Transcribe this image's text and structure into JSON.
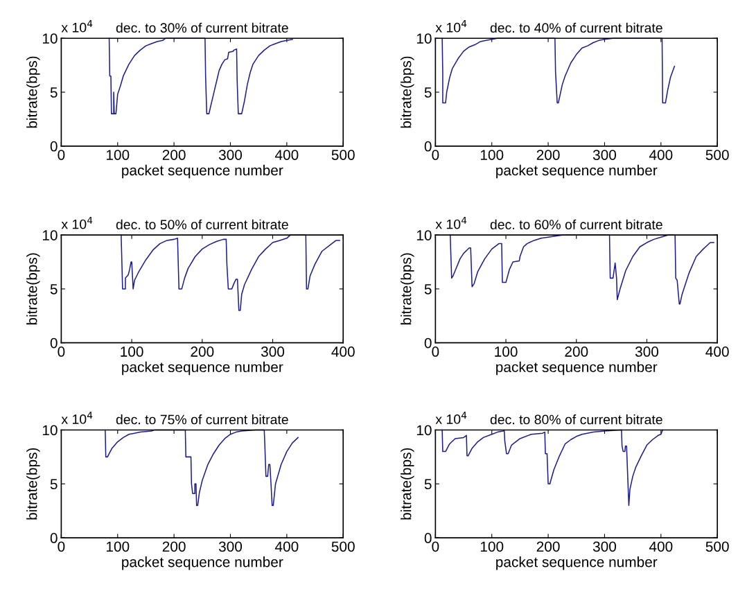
{
  "chart_data": [
    {
      "type": "line",
      "title": "dec. to 30% of current bitrate",
      "xlabel": "packet sequence number",
      "ylabel": "bitrate(bps)",
      "annotations": [
        "x 10$^{4}$"
      ],
      "xlim": [
        0,
        500
      ],
      "xticks": [
        0,
        100,
        200,
        300,
        400,
        500
      ],
      "ylim": [
        0,
        10
      ],
      "yticks": [
        0,
        5,
        10
      ],
      "grid": false,
      "legend": false,
      "series": [
        {
          "color": "#1c1c8a",
          "x": [
            85,
            86,
            88,
            89,
            93,
            93,
            94,
            97,
            100,
            105,
            110,
            120,
            130,
            140,
            150,
            160,
            170,
            180,
            185,
            255,
            256,
            258,
            262,
            265,
            270,
            275,
            280,
            285,
            290,
            295,
            297,
            305,
            306,
            311,
            312,
            314,
            320,
            325,
            330,
            335,
            340,
            350,
            360,
            370,
            380,
            390,
            400,
            410
          ],
          "values": [
            10,
            6.5,
            6.5,
            3,
            3,
            5,
            3,
            3,
            4.8,
            5.6,
            6.5,
            7.6,
            8.4,
            8.9,
            9.3,
            9.5,
            9.7,
            9.8,
            10,
            10,
            6.5,
            3,
            3,
            3.7,
            4.8,
            5.9,
            7,
            7.6,
            8,
            8.1,
            8.7,
            8.8,
            8.9,
            9,
            6,
            3,
            3,
            4.2,
            5.7,
            6.8,
            7.6,
            8.4,
            8.9,
            9.3,
            9.5,
            9.7,
            9.8,
            9.9
          ]
        }
      ]
    },
    {
      "type": "line",
      "title": "dec. to 40% of current bitrate",
      "xlabel": "packet sequence number",
      "ylabel": "bitrate(bps)",
      "annotations": [
        "x 10$^{4}$"
      ],
      "xlim": [
        0,
        500
      ],
      "xticks": [
        0,
        100,
        200,
        300,
        400,
        500
      ],
      "ylim": [
        0,
        10
      ],
      "yticks": [
        0,
        5,
        10
      ],
      "grid": false,
      "legend": false,
      "series": [
        {
          "color": "#1c1c8a",
          "x": [
            12,
            13,
            13,
            18,
            20,
            25,
            30,
            40,
            50,
            60,
            70,
            80,
            90,
            100,
            110,
            212,
            213,
            216,
            218,
            225,
            230,
            240,
            250,
            260,
            270,
            280,
            290,
            300,
            315,
            402,
            403,
            408,
            412,
            417,
            424
          ],
          "values": [
            10,
            6.8,
            4,
            4,
            5,
            6.3,
            7.2,
            8.1,
            8.8,
            9.2,
            9.4,
            9.7,
            9.8,
            9.9,
            10,
            10,
            6.9,
            4,
            4,
            5.7,
            6.5,
            7.7,
            8.5,
            9.1,
            9.3,
            9.6,
            9.8,
            9.9,
            10,
            10,
            4,
            4,
            5.2,
            6.4,
            7.4
          ]
        }
      ]
    },
    {
      "type": "line",
      "title": "dec. to 50% of current bitrate",
      "xlabel": "packet sequence number",
      "ylabel": "bitrate(bps)",
      "annotations": [
        "x 10$^{4}$"
      ],
      "xlim": [
        0,
        400
      ],
      "xticks": [
        0,
        100,
        200,
        300,
        400
      ],
      "ylim": [
        0,
        10
      ],
      "yticks": [
        0,
        5,
        10
      ],
      "grid": false,
      "legend": false,
      "series": [
        {
          "color": "#1c1c8a",
          "x": [
            85,
            86,
            87,
            91,
            91,
            95,
            97,
            99,
            100,
            102,
            104,
            110,
            120,
            130,
            140,
            150,
            160,
            165,
            167,
            171,
            175,
            180,
            190,
            200,
            210,
            220,
            230,
            234,
            235,
            237,
            242,
            245,
            248,
            250,
            252,
            254,
            256,
            260,
            270,
            280,
            290,
            300,
            310,
            320,
            325,
            347,
            348,
            350,
            353,
            360,
            370,
            380,
            390,
            395
          ],
          "values": [
            10,
            7.5,
            5,
            5,
            6,
            6.3,
            6.8,
            7.5,
            7.5,
            5,
            5.8,
            6.6,
            7.7,
            8.6,
            9.2,
            9.5,
            9.6,
            9.7,
            5,
            5,
            6,
            6.9,
            8,
            8.7,
            9.1,
            9.4,
            9.6,
            9.6,
            7.3,
            5,
            5,
            5.5,
            5.9,
            5.9,
            3,
            3,
            4.5,
            5.4,
            6.8,
            8,
            8.7,
            9.3,
            9.5,
            9.7,
            10,
            10,
            5,
            5,
            6.2,
            7.3,
            8.5,
            9,
            9.5,
            9.5
          ]
        }
      ]
    },
    {
      "type": "line",
      "title": "dec. to 60% of current bitrate",
      "xlabel": "packet sequence number",
      "ylabel": "bitrate(bps)",
      "annotations": [
        "x 10$^{4}$"
      ],
      "xlim": [
        0,
        400
      ],
      "xticks": [
        0,
        100,
        200,
        300,
        400
      ],
      "ylim": [
        0,
        10
      ],
      "yticks": [
        0,
        5,
        10
      ],
      "grid": false,
      "legend": false,
      "series": [
        {
          "color": "#1c1c8a",
          "x": [
            21,
            22,
            23,
            25,
            30,
            35,
            40,
            48,
            50,
            52,
            55,
            60,
            70,
            80,
            90,
            94,
            95,
            100,
            105,
            110,
            119,
            120,
            125,
            130,
            140,
            150,
            160,
            170,
            180,
            247,
            248,
            252,
            255,
            257,
            258,
            262,
            270,
            280,
            290,
            300,
            310,
            320,
            330,
            340,
            341,
            343,
            346,
            347,
            350,
            360,
            370,
            380,
            390,
            395
          ],
          "values": [
            10,
            8,
            6,
            6.2,
            7,
            7.8,
            8.3,
            8.8,
            8.8,
            5.2,
            5.5,
            6.6,
            7.8,
            8.7,
            9.2,
            9.2,
            5.6,
            5.6,
            6.8,
            7.5,
            7.6,
            8,
            8.9,
            9.2,
            9.5,
            9.7,
            9.8,
            9.9,
            10,
            10,
            6,
            6,
            7.4,
            6,
            4,
            5,
            6.7,
            8,
            8.9,
            9.3,
            9.6,
            9.8,
            10,
            10,
            6,
            5.8,
            3.6,
            3.6,
            4.5,
            6.5,
            8,
            8.7,
            9.3,
            9.3
          ]
        }
      ]
    },
    {
      "type": "line",
      "title": "dec. to 75% of current bitrate",
      "xlabel": "packet sequence number",
      "ylabel": "bitrate(bps)",
      "annotations": [
        "x 10$^{4}$"
      ],
      "xlim": [
        0,
        500
      ],
      "xticks": [
        0,
        100,
        200,
        300,
        400,
        500
      ],
      "ylim": [
        0,
        10
      ],
      "yticks": [
        0,
        5,
        10
      ],
      "grid": false,
      "legend": false,
      "series": [
        {
          "color": "#1c1c8a",
          "x": [
            78,
            79,
            82,
            85,
            90,
            100,
            110,
            120,
            130,
            140,
            160,
            165,
            220,
            221,
            230,
            231,
            233,
            237,
            237,
            239,
            240,
            242,
            245,
            250,
            260,
            270,
            280,
            290,
            300,
            310,
            320,
            345,
            360,
            361,
            363,
            366,
            368,
            370,
            372,
            374,
            376,
            380,
            390,
            400,
            410,
            420
          ],
          "values": [
            10,
            7.5,
            7.5,
            7.8,
            8.3,
            8.9,
            9.3,
            9.6,
            9.7,
            9.8,
            9.9,
            10,
            10,
            7.5,
            7.5,
            5,
            4.1,
            4.1,
            5,
            5,
            3,
            3,
            4.2,
            5.3,
            6.8,
            7.8,
            8.6,
            9.2,
            9.6,
            9.8,
            9.9,
            10,
            10,
            8.7,
            5.7,
            5.7,
            6.8,
            6.8,
            5,
            3,
            3,
            5,
            6.8,
            8,
            8.8,
            9.3
          ]
        }
      ]
    },
    {
      "type": "line",
      "title": "dec. to 80% of current bitrate",
      "xlabel": "packet sequence number",
      "ylabel": "bitrate(bps)",
      "annotations": [
        "x 10$^{4}$"
      ],
      "xlim": [
        0,
        500
      ],
      "xticks": [
        0,
        100,
        200,
        300,
        400,
        500
      ],
      "ylim": [
        0,
        10
      ],
      "yticks": [
        0,
        5,
        10
      ],
      "grid": false,
      "legend": false,
      "series": [
        {
          "color": "#1c1c8a",
          "x": [
            12,
            13,
            18,
            25,
            35,
            50,
            55,
            56,
            58,
            65,
            75,
            85,
            100,
            110,
            120,
            122,
            123,
            126,
            129,
            135,
            150,
            170,
            190,
            194,
            195,
            198,
            200,
            203,
            210,
            220,
            230,
            240,
            250,
            260,
            280,
            300,
            330,
            331,
            333,
            336,
            337,
            339,
            343,
            345,
            350,
            355,
            365,
            375,
            385,
            395,
            400,
            403
          ],
          "values": [
            10,
            8,
            8,
            8.7,
            9.2,
            9.3,
            9.5,
            7.6,
            7.6,
            8.3,
            8.9,
            9.3,
            9.6,
            9.8,
            9.9,
            10,
            9,
            7.8,
            7.8,
            8.6,
            9.2,
            9.6,
            9.7,
            9.8,
            7.8,
            7.8,
            5,
            5,
            6.3,
            7.6,
            8.7,
            9.1,
            9.4,
            9.6,
            9.8,
            9.9,
            10,
            8.5,
            8,
            8,
            8.5,
            8.5,
            3,
            4.5,
            5.7,
            6.5,
            7.6,
            8.6,
            9.1,
            9.5,
            9.6,
            10
          ]
        }
      ]
    }
  ]
}
